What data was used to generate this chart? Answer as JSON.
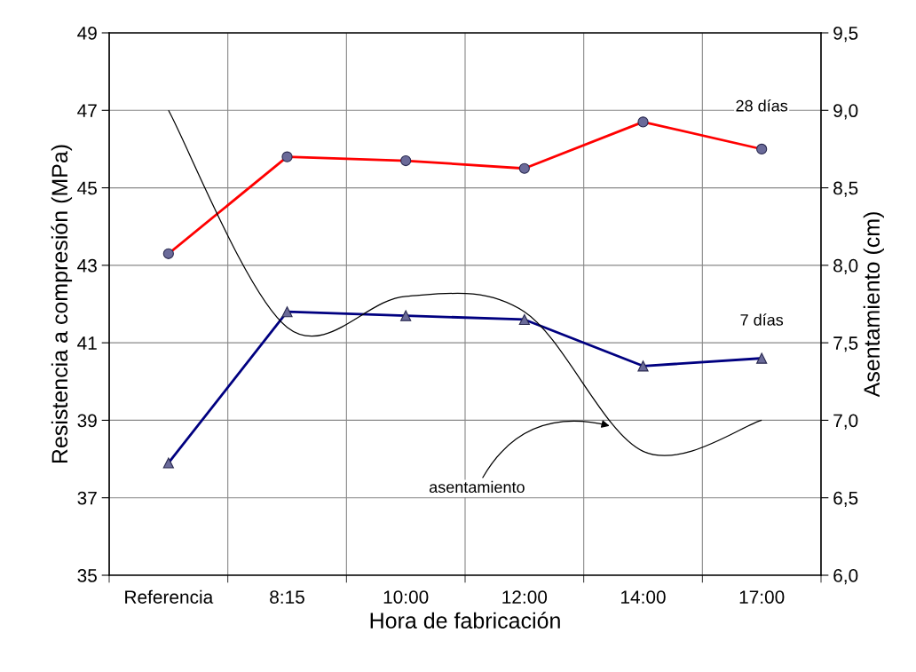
{
  "chart_data": {
    "type": "line",
    "xlabel": "Hora de fabricación",
    "ylabel": "Resistencia a compresión (MPa)",
    "y2label": "Asentamiento (cm)",
    "categories": [
      "Referencia",
      "8:15",
      "10:00",
      "12:00",
      "14:00",
      "17:00"
    ],
    "series": [
      {
        "name": "28 días",
        "color": "#ff0000",
        "marker": "circle",
        "values": [
          43.3,
          45.8,
          45.7,
          45.5,
          46.7,
          46.0
        ]
      },
      {
        "name": "7 días",
        "color": "#000080",
        "marker": "triangle",
        "values": [
          37.9,
          41.8,
          41.7,
          41.6,
          40.4,
          40.6
        ]
      },
      {
        "name": "asentamiento",
        "color": "#000000",
        "marker": "none",
        "axis": "y2",
        "values": [
          9.0,
          7.6,
          7.8,
          7.7,
          6.8,
          7.0
        ]
      }
    ],
    "ylim": [
      35,
      49
    ],
    "yticks": [
      35,
      37,
      39,
      41,
      43,
      45,
      47,
      49
    ],
    "y2lim": [
      6.0,
      9.5
    ],
    "y2ticks": [
      {
        "value": 6.0,
        "label": "6,0"
      },
      {
        "value": 6.5,
        "label": "6,5"
      },
      {
        "value": 7.0,
        "label": "7,0"
      },
      {
        "value": 7.5,
        "label": "7,5"
      },
      {
        "value": 8.0,
        "label": "8,0"
      },
      {
        "value": 8.5,
        "label": "8,5"
      },
      {
        "value": 9.0,
        "label": "9,0"
      },
      {
        "value": 9.5,
        "label": "9,5"
      }
    ],
    "grid": true,
    "legend": false
  }
}
